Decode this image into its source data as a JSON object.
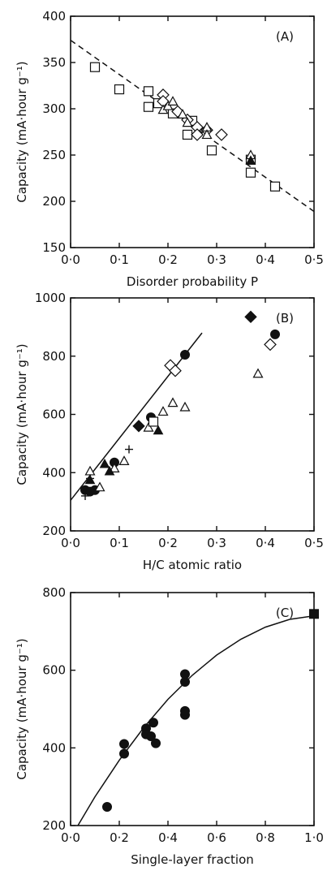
{
  "chart_data": [
    {
      "type": "scatter",
      "panel_label": "(A)",
      "xlabel": "Disorder probability P",
      "ylabel": "Capacity (mA·hour g⁻¹)",
      "xlim": [
        0,
        0.5
      ],
      "ylim": [
        150,
        400
      ],
      "xticks": [
        0,
        0.1,
        0.2,
        0.3,
        0.4,
        0.5
      ],
      "xtick_labels": [
        "0·0",
        "0·1",
        "0·2",
        "0·3",
        "0·4",
        "0·5"
      ],
      "yticks": [
        150,
        200,
        250,
        300,
        350,
        400
      ],
      "ytick_labels": [
        "150",
        "200",
        "250",
        "300",
        "350",
        "400"
      ],
      "series": [
        {
          "marker": "open-square",
          "points": [
            [
              0.05,
              345
            ],
            [
              0.1,
              321
            ],
            [
              0.16,
              319
            ],
            [
              0.16,
              302
            ],
            [
              0.18,
              306
            ],
            [
              0.21,
              295
            ],
            [
              0.24,
              272
            ],
            [
              0.25,
              287
            ],
            [
              0.29,
              255
            ],
            [
              0.37,
              231
            ],
            [
              0.37,
              245
            ],
            [
              0.42,
              216
            ]
          ]
        },
        {
          "marker": "open-diamond",
          "points": [
            [
              0.19,
              315
            ],
            [
              0.19,
              308
            ],
            [
              0.22,
              297
            ],
            [
              0.24,
              288
            ],
            [
              0.26,
              280
            ],
            [
              0.26,
              272
            ],
            [
              0.28,
              277
            ],
            [
              0.31,
              272
            ]
          ]
        },
        {
          "marker": "open-triangle",
          "points": [
            [
              0.19,
              299
            ],
            [
              0.2,
              303
            ],
            [
              0.21,
              308
            ],
            [
              0.23,
              294
            ],
            [
              0.24,
              285
            ],
            [
              0.28,
              280
            ],
            [
              0.28,
              272
            ],
            [
              0.37,
              250
            ]
          ]
        },
        {
          "marker": "filled-triangle",
          "points": [
            [
              0.37,
              244
            ]
          ]
        }
      ],
      "fit_line": {
        "style": "dashed",
        "points": [
          [
            0.0,
            374
          ],
          [
            0.5,
            189
          ]
        ]
      }
    },
    {
      "type": "scatter",
      "panel_label": "(B)",
      "xlabel": "H/C atomic ratio",
      "ylabel": "Capacity (mA·hour g⁻¹)",
      "xlim": [
        0,
        0.5
      ],
      "ylim": [
        200,
        1000
      ],
      "xticks": [
        0,
        0.1,
        0.2,
        0.3,
        0.4,
        0.5
      ],
      "xtick_labels": [
        "0·0",
        "0·1",
        "0·2",
        "0·3",
        "0·4",
        "0·5"
      ],
      "yticks": [
        200,
        400,
        600,
        800,
        1000
      ],
      "ytick_labels": [
        "200",
        "400",
        "600",
        "800",
        "1000"
      ],
      "series": [
        {
          "marker": "filled-circle",
          "points": [
            [
              0.03,
              340
            ],
            [
              0.04,
              335
            ],
            [
              0.05,
              340
            ],
            [
              0.09,
              435
            ],
            [
              0.165,
              590
            ],
            [
              0.235,
              805
            ],
            [
              0.42,
              875
            ]
          ]
        },
        {
          "marker": "open-diamond",
          "points": [
            [
              0.205,
              768
            ],
            [
              0.215,
              750
            ],
            [
              0.41,
              840
            ]
          ]
        },
        {
          "marker": "filled-diamond",
          "points": [
            [
              0.14,
              560
            ],
            [
              0.37,
              935
            ]
          ]
        },
        {
          "marker": "open-triangle",
          "points": [
            [
              0.04,
              405
            ],
            [
              0.06,
              350
            ],
            [
              0.09,
              415
            ],
            [
              0.11,
              440
            ],
            [
              0.16,
              555
            ],
            [
              0.19,
              610
            ],
            [
              0.21,
              640
            ],
            [
              0.235,
              625
            ],
            [
              0.385,
              740
            ]
          ]
        },
        {
          "marker": "filled-triangle",
          "points": [
            [
              0.04,
              375
            ],
            [
              0.07,
              430
            ],
            [
              0.08,
              405
            ],
            [
              0.18,
              545
            ]
          ]
        },
        {
          "marker": "open-square",
          "points": [
            [
              0.17,
              575
            ]
          ]
        },
        {
          "marker": "plus",
          "points": [
            [
              0.03,
              320
            ],
            [
              0.04,
              380
            ],
            [
              0.12,
              480
            ]
          ]
        }
      ],
      "fit_line": {
        "style": "solid",
        "points": [
          [
            0.0,
            305
          ],
          [
            0.27,
            880
          ]
        ]
      }
    },
    {
      "type": "scatter",
      "panel_label": "(C)",
      "xlabel": "Single-layer fraction",
      "ylabel": "Capacity (mA·hour g⁻¹)",
      "xlim": [
        0,
        1.0
      ],
      "ylim": [
        200,
        800
      ],
      "xticks": [
        0,
        0.2,
        0.4,
        0.6,
        0.8,
        1.0
      ],
      "xtick_labels": [
        "0·0",
        "0·2",
        "0·4",
        "0·6",
        "0·8",
        "1·0"
      ],
      "yticks": [
        200,
        400,
        600,
        800
      ],
      "ytick_labels": [
        "200",
        "400",
        "600",
        "800"
      ],
      "series": [
        {
          "marker": "filled-circle",
          "points": [
            [
              0.15,
              248
            ],
            [
              0.22,
              385
            ],
            [
              0.22,
              410
            ],
            [
              0.31,
              450
            ],
            [
              0.31,
              435
            ],
            [
              0.33,
              430
            ],
            [
              0.34,
              465
            ],
            [
              0.35,
              412
            ],
            [
              0.47,
              570
            ],
            [
              0.47,
              590
            ],
            [
              0.47,
              485
            ],
            [
              0.47,
              495
            ]
          ]
        },
        {
          "marker": "filled-square",
          "points": [
            [
              1.0,
              745
            ]
          ]
        }
      ],
      "fit_line": {
        "style": "solid",
        "points": [
          [
            0.03,
            200
          ],
          [
            0.1,
            274
          ],
          [
            0.2,
            368
          ],
          [
            0.3,
            452
          ],
          [
            0.4,
            525
          ],
          [
            0.5,
            587
          ],
          [
            0.6,
            639
          ],
          [
            0.7,
            680
          ],
          [
            0.8,
            711
          ],
          [
            0.9,
            731
          ],
          [
            1.0,
            740
          ]
        ]
      }
    }
  ]
}
